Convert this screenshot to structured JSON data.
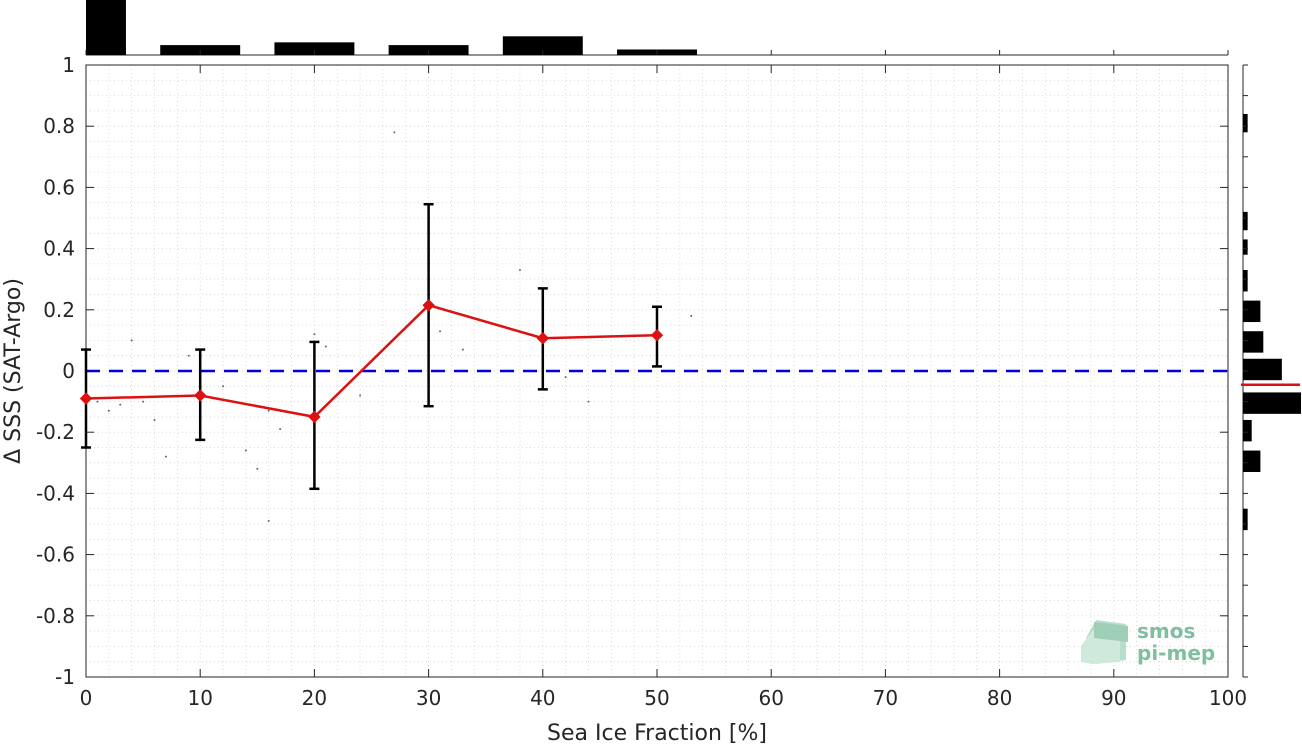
{
  "chart_data": {
    "type": "line",
    "xlabel": "Sea Ice Fraction [%]",
    "ylabel": "Δ SSS (SAT-Argo)",
    "xlim": [
      0,
      100
    ],
    "ylim": [
      -1,
      1
    ],
    "x_ticks": [
      "0",
      "10",
      "20",
      "30",
      "40",
      "50",
      "60",
      "70",
      "80",
      "90",
      "100"
    ],
    "y_ticks": [
      "-1",
      "-0.8",
      "-0.6",
      "-0.4",
      "-0.2",
      "0",
      "0.2",
      "0.4",
      "0.6",
      "0.8",
      "1"
    ],
    "grid": "dotted minor grid",
    "reference_line": {
      "y": 0,
      "color": "#0000dd",
      "style": "dashed"
    },
    "series": [
      {
        "color": "#dd1111",
        "marker": "diamond",
        "x": [
          0,
          10,
          20,
          30,
          40,
          50
        ],
        "y": [
          -0.09,
          -0.08,
          -0.15,
          0.215,
          0.107,
          0.117
        ],
        "err_low": [
          -0.25,
          -0.225,
          -0.385,
          -0.115,
          -0.06,
          0.015
        ],
        "err_high": [
          0.07,
          0.07,
          0.095,
          0.545,
          0.27,
          0.21
        ]
      }
    ],
    "top_histogram": {
      "x_ranges": [
        [
          0,
          3.5
        ],
        [
          6.5,
          13.5
        ],
        [
          16.5,
          23.5
        ],
        [
          26.5,
          33.5
        ],
        [
          36.5,
          43.5
        ],
        [
          46.5,
          53.5
        ]
      ],
      "relative_heights": [
        1.0,
        0.18,
        0.23,
        0.18,
        0.34,
        0.1
      ]
    },
    "right_histogram": {
      "y_ranges": [
        [
          0.78,
          0.84
        ],
        [
          0.46,
          0.52
        ],
        [
          0.38,
          0.43
        ],
        [
          0.26,
          0.33
        ],
        [
          0.16,
          0.23
        ],
        [
          0.06,
          0.13
        ],
        [
          -0.03,
          0.04
        ],
        [
          -0.14,
          -0.07
        ],
        [
          -0.23,
          -0.16
        ],
        [
          -0.33,
          -0.26
        ],
        [
          -0.52,
          -0.45
        ]
      ],
      "relative_widths": [
        0.08,
        0.08,
        0.08,
        0.08,
        0.3,
        0.35,
        0.67,
        1.0,
        0.15,
        0.3,
        0.08
      ],
      "mean_line": {
        "y": -0.045,
        "color": "#dd1111"
      }
    },
    "scatter_points": [
      [
        1,
        -0.1
      ],
      [
        2,
        -0.13
      ],
      [
        3,
        -0.11
      ],
      [
        4,
        0.1
      ],
      [
        6,
        -0.16
      ],
      [
        7,
        -0.28
      ],
      [
        5,
        -0.1
      ],
      [
        9,
        0.05
      ],
      [
        12,
        -0.05
      ],
      [
        14,
        -0.26
      ],
      [
        16,
        -0.13
      ],
      [
        17,
        -0.19
      ],
      [
        16,
        -0.49
      ],
      [
        20,
        0.12
      ],
      [
        24,
        -0.08
      ],
      [
        27,
        0.78
      ],
      [
        31,
        0.13
      ],
      [
        33,
        0.07
      ],
      [
        38,
        0.33
      ],
      [
        42,
        -0.02
      ],
      [
        44,
        -0.1
      ],
      [
        53,
        0.18
      ],
      [
        15,
        -0.32
      ],
      [
        21,
        0.08
      ]
    ]
  },
  "logo": {
    "line1": "smos",
    "line2": "pi-mep"
  }
}
